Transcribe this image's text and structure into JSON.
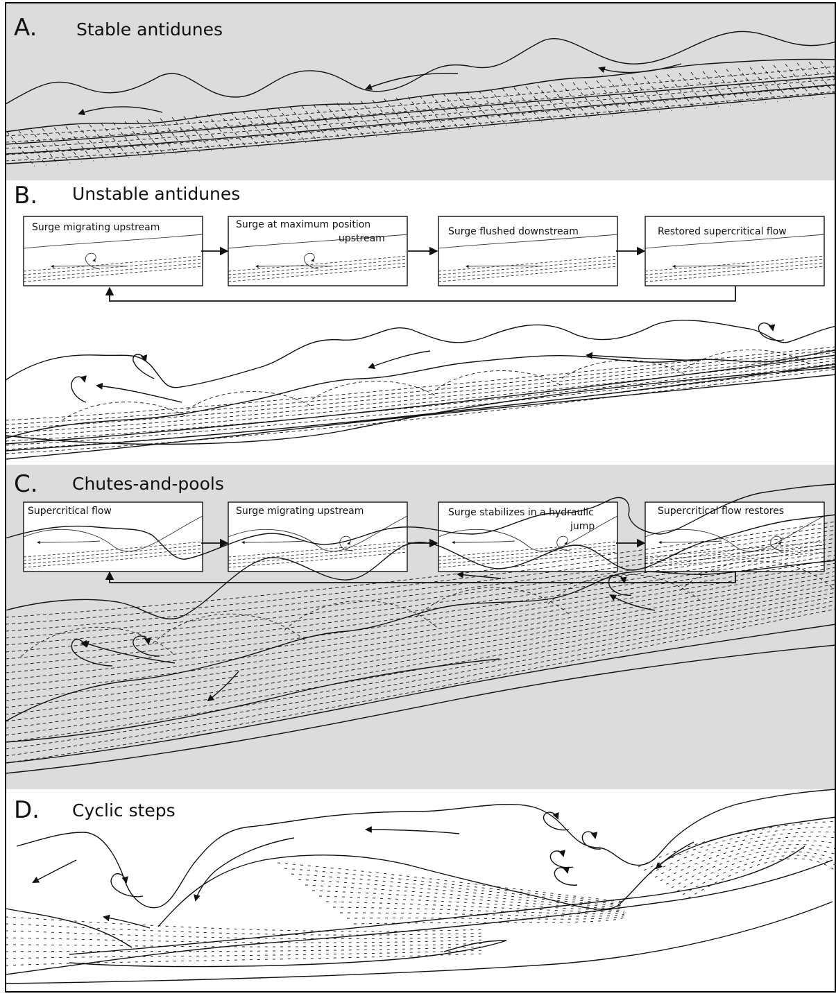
{
  "colors": {
    "shaded_background": "#dcdcdc",
    "unshaded_background": "#ffffff",
    "line": "#111111",
    "frame": "#000000"
  },
  "panels": [
    {
      "letter": "A.",
      "title": "Stable antidunes",
      "shaded": true,
      "stages": []
    },
    {
      "letter": "B.",
      "title": "Unstable antidunes",
      "shaded": false,
      "stages": [
        {
          "label": "Surge migrating  upstream"
        },
        {
          "label": "Surge at maximum position",
          "label_line2": "upstream"
        },
        {
          "label": "Surge flushed  downstream"
        },
        {
          "label": "Restored supercritical flow"
        }
      ]
    },
    {
      "letter": "C.",
      "title": "Chutes-and-pools",
      "shaded": true,
      "stages": [
        {
          "label": "Supercritical flow"
        },
        {
          "label": "Surge migrating upstream"
        },
        {
          "label": "Surge stabilizes in a hydraulic",
          "label_line2": "jump"
        },
        {
          "label": "Supercritical flow restores"
        }
      ]
    },
    {
      "letter": "D.",
      "title": "Cyclic steps",
      "shaded": false,
      "stages": []
    }
  ]
}
